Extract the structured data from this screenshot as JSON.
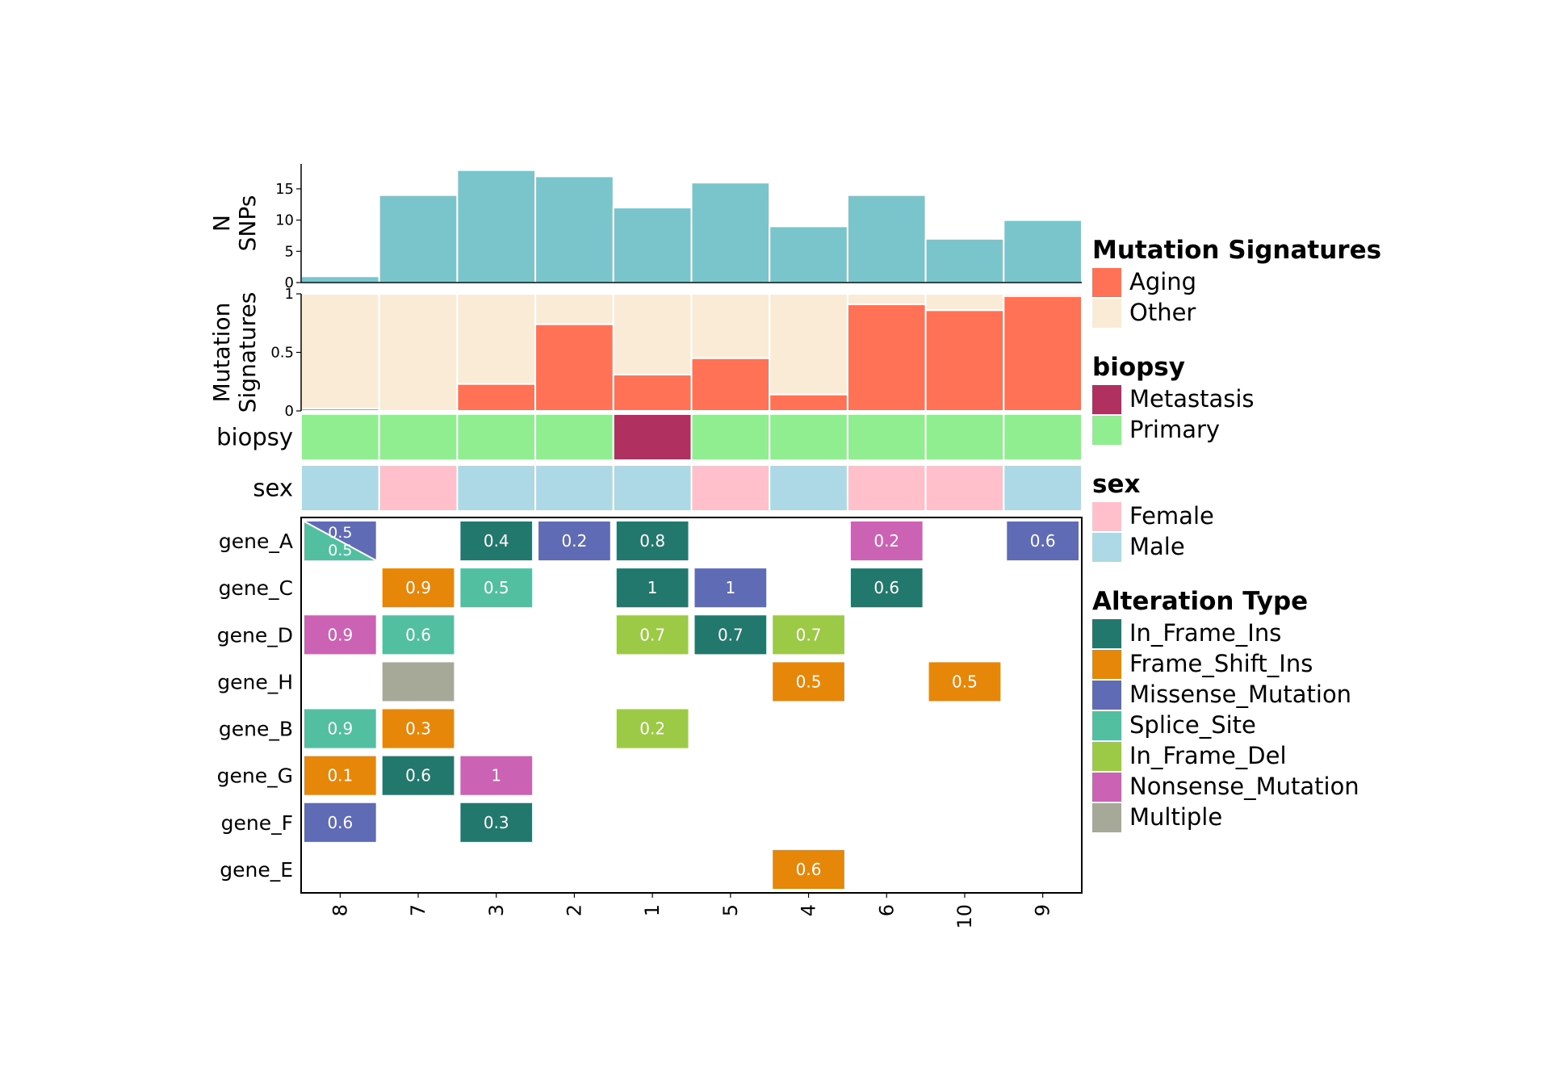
{
  "chart_data": {
    "type": "heatmap",
    "samples": [
      "8",
      "7",
      "3",
      "2",
      "1",
      "5",
      "4",
      "6",
      "10",
      "9"
    ],
    "snp_panel": {
      "ylabel_lines": [
        "N",
        "SNPs"
      ],
      "yticks": [
        "0",
        "5",
        "10",
        "15"
      ],
      "ylim": [
        0,
        19
      ],
      "values": [
        1,
        14,
        18,
        17,
        12,
        16,
        9,
        14,
        7,
        10
      ],
      "color": "#7AC4CC"
    },
    "signature_panel": {
      "ylabel_lines": [
        "Mutation",
        "Signatures"
      ],
      "yticks": [
        "0",
        "0.5",
        "1"
      ],
      "ylim": [
        0,
        1
      ],
      "aging": [
        0.02,
        0.0,
        0.23,
        0.74,
        0.31,
        0.45,
        0.14,
        0.91,
        0.86,
        0.98
      ],
      "series": [
        {
          "name": "Aging",
          "color": "#FF7256"
        },
        {
          "name": "Other",
          "color": "#FAEBD7"
        }
      ]
    },
    "biopsy_track": {
      "label": "biopsy",
      "values": [
        "Primary",
        "Primary",
        "Primary",
        "Primary",
        "Metastasis",
        "Primary",
        "Primary",
        "Primary",
        "Primary",
        "Primary"
      ]
    },
    "sex_track": {
      "label": "sex",
      "values": [
        "Male",
        "Female",
        "Male",
        "Male",
        "Male",
        "Female",
        "Male",
        "Female",
        "Female",
        "Male"
      ]
    },
    "genes": [
      "gene_A",
      "gene_C",
      "gene_D",
      "gene_H",
      "gene_B",
      "gene_G",
      "gene_F",
      "gene_E"
    ],
    "cells": [
      {
        "gene": 0,
        "sample": 0,
        "type": "Missense_Mutation",
        "label": "0.5",
        "split": {
          "type": "Splice_Site",
          "label": "0.5"
        }
      },
      {
        "gene": 0,
        "sample": 2,
        "type": "In_Frame_Ins",
        "label": "0.4"
      },
      {
        "gene": 0,
        "sample": 3,
        "type": "Missense_Mutation",
        "label": "0.2"
      },
      {
        "gene": 0,
        "sample": 4,
        "type": "In_Frame_Ins",
        "label": "0.8"
      },
      {
        "gene": 0,
        "sample": 7,
        "type": "Nonsense_Mutation",
        "label": "0.2"
      },
      {
        "gene": 0,
        "sample": 9,
        "type": "Missense_Mutation",
        "label": "0.6"
      },
      {
        "gene": 1,
        "sample": 1,
        "type": "Frame_Shift_Ins",
        "label": "0.9"
      },
      {
        "gene": 1,
        "sample": 2,
        "type": "Splice_Site",
        "label": "0.5"
      },
      {
        "gene": 1,
        "sample": 4,
        "type": "In_Frame_Ins",
        "label": "1"
      },
      {
        "gene": 1,
        "sample": 5,
        "type": "Missense_Mutation",
        "label": "1"
      },
      {
        "gene": 1,
        "sample": 7,
        "type": "In_Frame_Ins",
        "label": "0.6"
      },
      {
        "gene": 2,
        "sample": 0,
        "type": "Nonsense_Mutation",
        "label": "0.9"
      },
      {
        "gene": 2,
        "sample": 1,
        "type": "Splice_Site",
        "label": "0.6"
      },
      {
        "gene": 2,
        "sample": 4,
        "type": "In_Frame_Del",
        "label": "0.7"
      },
      {
        "gene": 2,
        "sample": 5,
        "type": "In_Frame_Ins",
        "label": "0.7"
      },
      {
        "gene": 2,
        "sample": 6,
        "type": "In_Frame_Del",
        "label": "0.7"
      },
      {
        "gene": 3,
        "sample": 1,
        "type": "Multiple",
        "label": ""
      },
      {
        "gene": 3,
        "sample": 6,
        "type": "Frame_Shift_Ins",
        "label": "0.5"
      },
      {
        "gene": 3,
        "sample": 8,
        "type": "Frame_Shift_Ins",
        "label": "0.5"
      },
      {
        "gene": 4,
        "sample": 0,
        "type": "Splice_Site",
        "label": "0.9"
      },
      {
        "gene": 4,
        "sample": 1,
        "type": "Frame_Shift_Ins",
        "label": "0.3"
      },
      {
        "gene": 4,
        "sample": 4,
        "type": "In_Frame_Del",
        "label": "0.2"
      },
      {
        "gene": 5,
        "sample": 0,
        "type": "Frame_Shift_Ins",
        "label": "0.1"
      },
      {
        "gene": 5,
        "sample": 1,
        "type": "In_Frame_Ins",
        "label": "0.6"
      },
      {
        "gene": 5,
        "sample": 2,
        "type": "Nonsense_Mutation",
        "label": "1"
      },
      {
        "gene": 6,
        "sample": 0,
        "type": "Missense_Mutation",
        "label": "0.6"
      },
      {
        "gene": 6,
        "sample": 2,
        "type": "In_Frame_Ins",
        "label": "0.3"
      },
      {
        "gene": 7,
        "sample": 6,
        "type": "Frame_Shift_Ins",
        "label": "0.6"
      }
    ],
    "legends": [
      {
        "title": "Mutation Signatures",
        "items": [
          {
            "label": "Aging",
            "color": "#FF7256"
          },
          {
            "label": "Other",
            "color": "#FAEBD7"
          }
        ]
      },
      {
        "title": "biopsy",
        "items": [
          {
            "label": "Metastasis",
            "color": "#B03060"
          },
          {
            "label": "Primary",
            "color": "#90EE90"
          }
        ]
      },
      {
        "title": "sex",
        "items": [
          {
            "label": "Female",
            "color": "#FFC0CB"
          },
          {
            "label": "Male",
            "color": "#ADD8E6"
          }
        ]
      },
      {
        "title": "Alteration Type",
        "items": [
          {
            "label": "In_Frame_Ins",
            "color": "#23786E"
          },
          {
            "label": "Frame_Shift_Ins",
            "color": "#E6870A"
          },
          {
            "label": "Missense_Mutation",
            "color": "#5F6BB4"
          },
          {
            "label": "Splice_Site",
            "color": "#52BFA0"
          },
          {
            "label": "In_Frame_Del",
            "color": "#9CC946"
          },
          {
            "label": "Nonsense_Mutation",
            "color": "#CC62B3"
          },
          {
            "label": "Multiple",
            "color": "#A6A997"
          }
        ]
      }
    ],
    "legend_placement": "right",
    "grid": false
  }
}
